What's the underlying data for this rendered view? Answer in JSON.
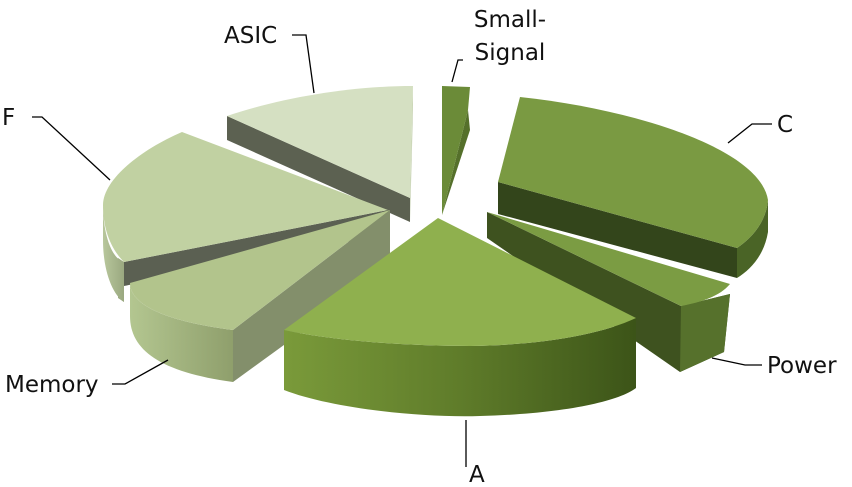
{
  "chart_data": {
    "type": "pie",
    "style": "3d-exploded",
    "title": "",
    "legend": "none",
    "categories": [
      "Small-Signal",
      "C",
      "Power",
      "A",
      "Memory",
      "F",
      "ASIC"
    ],
    "values": [
      2,
      21,
      5,
      23,
      14,
      19,
      16
    ],
    "unit": "",
    "labels": {
      "small_signal_line1": "Small-",
      "small_signal_line2": "Signal",
      "c": "C",
      "power": "Power",
      "a": "A",
      "memory": "Memory",
      "f": "F",
      "asic": "ASIC"
    },
    "colors": {
      "Small-Signal": "#6a8a38",
      "C": "#7a9a42",
      "Power": "#7b9c43",
      "A": "#8fb04e",
      "Memory": "#b2c48c",
      "F": "#c1d1a2",
      "ASIC": "#d5e0c2"
    }
  }
}
